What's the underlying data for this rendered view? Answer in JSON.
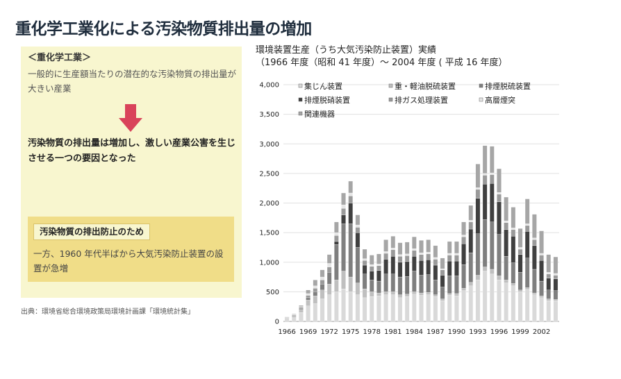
{
  "page": {
    "title": "重化学工業化による汚染物質排出量の増加"
  },
  "left_panel": {
    "heading": "＜重化学工業＞",
    "description": "一般的に生産額当たりの潜在的な汚染物質の排出量が大きい産業",
    "conclusion": "汚染物質の排出量は増加し、激しい産業公害を生じさせる一つの要因となった",
    "box_heading": "汚染物質の排出防止のため",
    "box_description": "一方、1960 年代半ばから大気汚染防止装置の設置が急増",
    "arrow_color": "#d9435a"
  },
  "source": "出典：環境省総合環境政策局環境計画課「環境統計集」",
  "chart_data": {
    "type": "bar",
    "stacked": true,
    "title_line1": "環境装置生産（うち大気汚染防止装置）実績",
    "title_line2": "（1966 年度（昭和 41 年度）～ 2004 年度 ( 平成 16 年度）",
    "ylim": [
      0,
      4000
    ],
    "yticks": [
      0,
      500,
      1000,
      1500,
      2000,
      2500,
      3000,
      3500,
      4000
    ],
    "ytick_labels": [
      "0",
      "500",
      "1,000",
      "1,500",
      "2,000",
      "2,500",
      "3,000",
      "3,500",
      "4,000"
    ],
    "xtick_labels": [
      "1966",
      "1969",
      "1972",
      "1975",
      "1978",
      "1981",
      "1984",
      "1987",
      "1990",
      "1993",
      "1996",
      "1999",
      "2002"
    ],
    "grid": true,
    "legend_position": "top",
    "x": [
      1966,
      1967,
      1968,
      1969,
      1970,
      1971,
      1972,
      1973,
      1974,
      1975,
      1976,
      1977,
      1978,
      1979,
      1980,
      1981,
      1982,
      1983,
      1984,
      1985,
      1986,
      1987,
      1988,
      1989,
      1990,
      1991,
      1992,
      1993,
      1994,
      1995,
      1996,
      1997,
      1998,
      1999,
      2000,
      2001,
      2002,
      2003,
      2004
    ],
    "series": [
      {
        "name": "集じん装置",
        "color": "#d9d9d9",
        "values": [
          50,
          60,
          150,
          260,
          300,
          380,
          450,
          500,
          550,
          500,
          450,
          400,
          420,
          430,
          450,
          450,
          400,
          420,
          460,
          440,
          450,
          420,
          350,
          440,
          430,
          520,
          600,
          700,
          850,
          800,
          700,
          650,
          600,
          500,
          540,
          450,
          400,
          350,
          350
        ]
      },
      {
        "name": "重・軽油脱硫装置",
        "color": "#bfbfbf",
        "values": [
          10,
          20,
          50,
          100,
          130,
          150,
          180,
          200,
          300,
          250,
          200,
          150,
          80,
          50,
          50,
          50,
          50,
          40,
          40,
          40,
          40,
          30,
          30,
          30,
          40,
          40,
          60,
          80,
          70,
          80,
          70,
          50,
          40,
          30,
          30,
          30,
          30,
          30,
          20
        ]
      },
      {
        "name": "排煙脱硫装置",
        "color": "#7f7f7f",
        "values": [
          0,
          10,
          20,
          40,
          70,
          100,
          200,
          600,
          800,
          900,
          600,
          250,
          200,
          200,
          300,
          300,
          300,
          300,
          350,
          300,
          300,
          250,
          200,
          300,
          300,
          400,
          500,
          700,
          800,
          800,
          700,
          400,
          350,
          300,
          500,
          400,
          250,
          150,
          150
        ]
      },
      {
        "name": "排煙脱硝装置",
        "color": "#404040",
        "values": [
          0,
          0,
          0,
          0,
          0,
          0,
          0,
          50,
          150,
          350,
          250,
          150,
          150,
          180,
          250,
          300,
          250,
          250,
          250,
          250,
          250,
          250,
          200,
          250,
          250,
          350,
          400,
          600,
          600,
          650,
          550,
          450,
          450,
          300,
          450,
          400,
          350,
          200,
          200
        ]
      },
      {
        "name": "排ガス処理装置",
        "color": "#9a9a9a",
        "values": [
          10,
          15,
          20,
          40,
          60,
          70,
          90,
          100,
          110,
          120,
          90,
          80,
          80,
          80,
          100,
          110,
          100,
          100,
          100,
          100,
          100,
          100,
          90,
          100,
          100,
          120,
          120,
          150,
          150,
          150,
          130,
          120,
          110,
          90,
          100,
          100,
          90,
          70,
          60
        ]
      },
      {
        "name": "高層煙突",
        "color": "#e6e6e6",
        "values": [
          5,
          10,
          10,
          30,
          40,
          50,
          60,
          50,
          60,
          50,
          40,
          30,
          30,
          30,
          30,
          30,
          30,
          30,
          30,
          30,
          30,
          30,
          20,
          30,
          30,
          30,
          30,
          30,
          30,
          30,
          30,
          30,
          30,
          30,
          30,
          30,
          30,
          30,
          30
        ]
      },
      {
        "name": "関連機器",
        "color": "#a6a6a6",
        "values": [
          5,
          10,
          20,
          60,
          100,
          120,
          150,
          180,
          200,
          200,
          170,
          160,
          160,
          170,
          200,
          200,
          200,
          200,
          200,
          210,
          210,
          200,
          180,
          200,
          200,
          220,
          250,
          400,
          470,
          450,
          400,
          400,
          350,
          320,
          420,
          400,
          380,
          300,
          280
        ]
      }
    ]
  }
}
